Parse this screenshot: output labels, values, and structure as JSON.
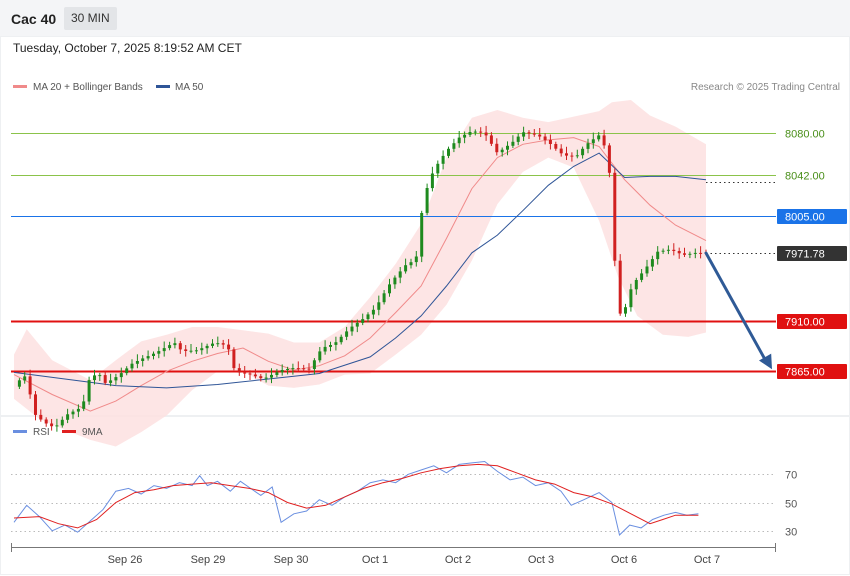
{
  "header": {
    "instrument": "Cac 40",
    "timeframe": "30 MIN",
    "datetime": "Tuesday, October 7, 2025 8:19:52 AM CET"
  },
  "legend": {
    "ma20_bb": "MA 20 + Bollinger Bands",
    "ma50": "MA 50",
    "credit": "Research © 2025 Trading Central",
    "rsi": "RSI",
    "rsi_ma": "9MA"
  },
  "colors": {
    "ma20": "#f08a8a",
    "bollinger_band": "#fde0e0",
    "ma50": "#2f5597",
    "rsi": "#6a8fe0",
    "rsi_ma": "#e02020",
    "up_candle": "#1e8a1e",
    "down_candle": "#d02020",
    "support": "#e01010",
    "level_blue": "#1a73e8",
    "level_green": "#8bc34a",
    "arrow": "#2f5a96"
  },
  "chart_data": [
    {
      "type": "candlestick",
      "title": "Cac 40",
      "x": [
        "Sep 26",
        "Sep 29",
        "Sep 30",
        "Oct 1",
        "Oct 2",
        "Oct 3",
        "Oct 6",
        "Oct 7"
      ],
      "ylim": [
        7830,
        8110
      ],
      "price_path": [
        {
          "t": 0,
          "p": 7851
        },
        {
          "t": 0.8,
          "p": 7862
        },
        {
          "t": 1.2,
          "p": 7847
        },
        {
          "t": 1.7,
          "p": 7825
        },
        {
          "t": 2.5,
          "p": 7818
        },
        {
          "t": 3.2,
          "p": 7814
        },
        {
          "t": 4.2,
          "p": 7826
        },
        {
          "t": 5.4,
          "p": 7833
        },
        {
          "t": 5.8,
          "p": 7856
        },
        {
          "t": 6.6,
          "p": 7864
        },
        {
          "t": 7.2,
          "p": 7854
        },
        {
          "t": 8.2,
          "p": 7861
        },
        {
          "t": 9.3,
          "p": 7872
        },
        {
          "t": 10.0,
          "p": 7876
        },
        {
          "t": 11.2,
          "p": 7882
        },
        {
          "t": 12.6,
          "p": 7891
        },
        {
          "t": 13.2,
          "p": 7883
        },
        {
          "t": 14.4,
          "p": 7884
        },
        {
          "t": 15.8,
          "p": 7891
        },
        {
          "t": 16.8,
          "p": 7888
        },
        {
          "t": 17.2,
          "p": 7869
        },
        {
          "t": 17.6,
          "p": 7864
        },
        {
          "t": 18.6,
          "p": 7862
        },
        {
          "t": 19.6,
          "p": 7858
        },
        {
          "t": 21.0,
          "p": 7866
        },
        {
          "t": 22.0,
          "p": 7868
        },
        {
          "t": 23.2,
          "p": 7867
        },
        {
          "t": 24.2,
          "p": 7886
        },
        {
          "t": 25.2,
          "p": 7890
        },
        {
          "t": 26.4,
          "p": 7904
        },
        {
          "t": 27.4,
          "p": 7912
        },
        {
          "t": 28.4,
          "p": 7922
        },
        {
          "t": 29.6,
          "p": 7945
        },
        {
          "t": 30.8,
          "p": 7961
        },
        {
          "t": 31.6,
          "p": 7966
        },
        {
          "t": 32.2,
          "p": 8022
        },
        {
          "t": 33.0,
          "p": 8047
        },
        {
          "t": 34.0,
          "p": 8064
        },
        {
          "t": 35.0,
          "p": 8076
        },
        {
          "t": 36.0,
          "p": 8082
        },
        {
          "t": 37.0,
          "p": 8080
        },
        {
          "t": 38.0,
          "p": 8062
        },
        {
          "t": 39.2,
          "p": 8072
        },
        {
          "t": 40.0,
          "p": 8081
        },
        {
          "t": 41.2,
          "p": 8078
        },
        {
          "t": 42.0,
          "p": 8072
        },
        {
          "t": 43.2,
          "p": 8060
        },
        {
          "t": 44.2,
          "p": 8059
        },
        {
          "t": 45.0,
          "p": 8070
        },
        {
          "t": 46.2,
          "p": 8080
        },
        {
          "t": 47.0,
          "p": 8033
        },
        {
          "t": 47.4,
          "p": 7915
        },
        {
          "t": 48.0,
          "p": 7920
        },
        {
          "t": 48.6,
          "p": 7943
        },
        {
          "t": 49.6,
          "p": 7957
        },
        {
          "t": 50.6,
          "p": 7973
        },
        {
          "t": 51.6,
          "p": 7975
        },
        {
          "t": 52.6,
          "p": 7970
        },
        {
          "t": 53.6,
          "p": 7972
        },
        {
          "t": 54.4,
          "p": 7971.78
        }
      ],
      "ma20_path": [
        {
          "t": 0,
          "p": 7862
        },
        {
          "t": 3,
          "p": 7844
        },
        {
          "t": 6,
          "p": 7829
        },
        {
          "t": 8,
          "p": 7838
        },
        {
          "t": 10,
          "p": 7852
        },
        {
          "t": 12,
          "p": 7865
        },
        {
          "t": 14,
          "p": 7874
        },
        {
          "t": 16,
          "p": 7881
        },
        {
          "t": 18,
          "p": 7886
        },
        {
          "t": 20,
          "p": 7874
        },
        {
          "t": 22,
          "p": 7866
        },
        {
          "t": 24,
          "p": 7870
        },
        {
          "t": 26,
          "p": 7879
        },
        {
          "t": 28,
          "p": 7895
        },
        {
          "t": 30,
          "p": 7918
        },
        {
          "t": 32,
          "p": 7942
        },
        {
          "t": 34,
          "p": 7985
        },
        {
          "t": 36,
          "p": 8030
        },
        {
          "t": 38,
          "p": 8058
        },
        {
          "t": 40,
          "p": 8070
        },
        {
          "t": 42,
          "p": 8074
        },
        {
          "t": 44,
          "p": 8076
        },
        {
          "t": 46,
          "p": 8068
        },
        {
          "t": 48,
          "p": 8038
        },
        {
          "t": 50,
          "p": 8015
        },
        {
          "t": 52,
          "p": 7997
        },
        {
          "t": 54.4,
          "p": 7983
        }
      ],
      "bb_upper_path": [
        {
          "t": 0,
          "p": 7880
        },
        {
          "t": 1,
          "p": 7903
        },
        {
          "t": 3,
          "p": 7875
        },
        {
          "t": 6,
          "p": 7857
        },
        {
          "t": 8,
          "p": 7875
        },
        {
          "t": 10,
          "p": 7892
        },
        {
          "t": 12,
          "p": 7898
        },
        {
          "t": 14,
          "p": 7905
        },
        {
          "t": 16,
          "p": 7905
        },
        {
          "t": 18,
          "p": 7902
        },
        {
          "t": 20,
          "p": 7899
        },
        {
          "t": 22,
          "p": 7891
        },
        {
          "t": 24,
          "p": 7891
        },
        {
          "t": 26,
          "p": 7905
        },
        {
          "t": 28,
          "p": 7932
        },
        {
          "t": 30,
          "p": 7962
        },
        {
          "t": 32,
          "p": 7998
        },
        {
          "t": 34,
          "p": 8058
        },
        {
          "t": 36,
          "p": 8094
        },
        {
          "t": 38,
          "p": 8101
        },
        {
          "t": 40,
          "p": 8094
        },
        {
          "t": 42,
          "p": 8090
        },
        {
          "t": 44,
          "p": 8095
        },
        {
          "t": 46,
          "p": 8100
        },
        {
          "t": 47,
          "p": 8108
        },
        {
          "t": 48.5,
          "p": 8110
        },
        {
          "t": 50,
          "p": 8096
        },
        {
          "t": 52,
          "p": 8086
        },
        {
          "t": 54.4,
          "p": 8070
        }
      ],
      "bb_lower_path": [
        {
          "t": 0,
          "p": 7840
        },
        {
          "t": 2,
          "p": 7822
        },
        {
          "t": 4,
          "p": 7812
        },
        {
          "t": 6,
          "p": 7803
        },
        {
          "t": 8,
          "p": 7797
        },
        {
          "t": 10,
          "p": 7810
        },
        {
          "t": 12,
          "p": 7825
        },
        {
          "t": 14,
          "p": 7848
        },
        {
          "t": 16,
          "p": 7865
        },
        {
          "t": 18,
          "p": 7865
        },
        {
          "t": 20,
          "p": 7852
        },
        {
          "t": 22,
          "p": 7850
        },
        {
          "t": 24,
          "p": 7853
        },
        {
          "t": 26,
          "p": 7862
        },
        {
          "t": 28,
          "p": 7863
        },
        {
          "t": 30,
          "p": 7880
        },
        {
          "t": 32,
          "p": 7898
        },
        {
          "t": 34,
          "p": 7925
        },
        {
          "t": 36,
          "p": 7965
        },
        {
          "t": 38,
          "p": 8016
        },
        {
          "t": 40,
          "p": 8045
        },
        {
          "t": 42,
          "p": 8058
        },
        {
          "t": 44,
          "p": 8049
        },
        {
          "t": 46,
          "p": 8001
        },
        {
          "t": 47.5,
          "p": 7950
        },
        {
          "t": 49,
          "p": 7915
        },
        {
          "t": 51,
          "p": 7898
        },
        {
          "t": 53,
          "p": 7896
        },
        {
          "t": 54.4,
          "p": 7900
        }
      ],
      "ma50_path": [
        {
          "t": 0,
          "p": 7864
        },
        {
          "t": 4,
          "p": 7858
        },
        {
          "t": 8,
          "p": 7852
        },
        {
          "t": 12,
          "p": 7850
        },
        {
          "t": 16,
          "p": 7853
        },
        {
          "t": 20,
          "p": 7858
        },
        {
          "t": 24,
          "p": 7863
        },
        {
          "t": 28,
          "p": 7878
        },
        {
          "t": 30,
          "p": 7895
        },
        {
          "t": 32,
          "p": 7915
        },
        {
          "t": 34,
          "p": 7942
        },
        {
          "t": 36,
          "p": 7972
        },
        {
          "t": 38,
          "p": 7988
        },
        {
          "t": 40,
          "p": 8010
        },
        {
          "t": 42,
          "p": 8033
        },
        {
          "t": 44,
          "p": 8050
        },
        {
          "t": 46,
          "p": 8062
        },
        {
          "t": 48,
          "p": 8040
        },
        {
          "t": 50,
          "p": 8041
        },
        {
          "t": 52,
          "p": 8041
        },
        {
          "t": 54.4,
          "p": 8038
        }
      ],
      "levels": [
        {
          "value": 8080.0,
          "label": "8080.00",
          "style": "green"
        },
        {
          "value": 8042.0,
          "label": "8042.00",
          "style": "green"
        },
        {
          "value": 8005.0,
          "label": "8005.00",
          "style": "blue"
        },
        {
          "value": 7971.78,
          "label": "7971.78",
          "style": "last"
        },
        {
          "value": 7910.0,
          "label": "7910.00",
          "style": "red"
        },
        {
          "value": 7865.0,
          "label": "7865.00",
          "style": "red"
        }
      ],
      "projection": {
        "from": {
          "t": 54.4,
          "p": 7971.78
        },
        "to": {
          "t": 59.5,
          "p": 7865
        }
      },
      "legend": [
        "MA 20 + Bollinger Bands",
        "MA 50"
      ]
    },
    {
      "type": "line",
      "x": [
        "Sep 26",
        "Sep 29",
        "Sep 30",
        "Oct 1",
        "Oct 2",
        "Oct 3",
        "Oct 6",
        "Oct 7"
      ],
      "ylim": [
        10,
        90
      ],
      "yticks": [
        70,
        50,
        30
      ],
      "series": [
        {
          "name": "RSI",
          "points": [
            {
              "t": 0,
              "v": 36
            },
            {
              "t": 1,
              "v": 48
            },
            {
              "t": 2,
              "v": 40
            },
            {
              "t": 3,
              "v": 30
            },
            {
              "t": 4,
              "v": 34
            },
            {
              "t": 5,
              "v": 29
            },
            {
              "t": 6,
              "v": 37
            },
            {
              "t": 7,
              "v": 45
            },
            {
              "t": 8,
              "v": 58
            },
            {
              "t": 9,
              "v": 60
            },
            {
              "t": 10,
              "v": 56
            },
            {
              "t": 11,
              "v": 62
            },
            {
              "t": 12,
              "v": 60
            },
            {
              "t": 13,
              "v": 64
            },
            {
              "t": 14,
              "v": 62
            },
            {
              "t": 14.6,
              "v": 69
            },
            {
              "t": 15.2,
              "v": 62
            },
            {
              "t": 16,
              "v": 65
            },
            {
              "t": 17,
              "v": 58
            },
            {
              "t": 17.8,
              "v": 65
            },
            {
              "t": 18.6,
              "v": 60
            },
            {
              "t": 19.4,
              "v": 55
            },
            {
              "t": 20.3,
              "v": 61
            },
            {
              "t": 21,
              "v": 36
            },
            {
              "t": 22,
              "v": 42
            },
            {
              "t": 23,
              "v": 44
            },
            {
              "t": 24,
              "v": 52
            },
            {
              "t": 25,
              "v": 48
            },
            {
              "t": 26,
              "v": 54
            },
            {
              "t": 27,
              "v": 58
            },
            {
              "t": 28,
              "v": 64
            },
            {
              "t": 29,
              "v": 66
            },
            {
              "t": 30,
              "v": 64
            },
            {
              "t": 31,
              "v": 70
            },
            {
              "t": 32,
              "v": 73
            },
            {
              "t": 33,
              "v": 76
            },
            {
              "t": 34,
              "v": 71
            },
            {
              "t": 35,
              "v": 77
            },
            {
              "t": 36,
              "v": 78
            },
            {
              "t": 37,
              "v": 79
            },
            {
              "t": 38,
              "v": 72
            },
            {
              "t": 39,
              "v": 66
            },
            {
              "t": 40,
              "v": 68
            },
            {
              "t": 41,
              "v": 62
            },
            {
              "t": 42,
              "v": 64
            },
            {
              "t": 43,
              "v": 58
            },
            {
              "t": 43.8,
              "v": 48
            },
            {
              "t": 44.8,
              "v": 52
            },
            {
              "t": 46,
              "v": 57
            },
            {
              "t": 47,
              "v": 50
            },
            {
              "t": 47.6,
              "v": 27
            },
            {
              "t": 48.4,
              "v": 34
            },
            {
              "t": 49.3,
              "v": 32
            },
            {
              "t": 50.2,
              "v": 38
            },
            {
              "t": 51.1,
              "v": 41
            },
            {
              "t": 52,
              "v": 43
            },
            {
              "t": 52.9,
              "v": 41
            },
            {
              "t": 53.8,
              "v": 42
            }
          ]
        },
        {
          "name": "9MA",
          "points": [
            {
              "t": 0,
              "v": 39
            },
            {
              "t": 2,
              "v": 40
            },
            {
              "t": 3.5,
              "v": 35
            },
            {
              "t": 5,
              "v": 32
            },
            {
              "t": 6.5,
              "v": 38
            },
            {
              "t": 8,
              "v": 50
            },
            {
              "t": 9.5,
              "v": 57
            },
            {
              "t": 11,
              "v": 59
            },
            {
              "t": 12.5,
              "v": 62
            },
            {
              "t": 14,
              "v": 63
            },
            {
              "t": 15.5,
              "v": 64
            },
            {
              "t": 17,
              "v": 62
            },
            {
              "t": 18.5,
              "v": 60
            },
            {
              "t": 20,
              "v": 57
            },
            {
              "t": 21.5,
              "v": 50
            },
            {
              "t": 23,
              "v": 46
            },
            {
              "t": 24.5,
              "v": 48
            },
            {
              "t": 26,
              "v": 54
            },
            {
              "t": 27.5,
              "v": 60
            },
            {
              "t": 29,
              "v": 64
            },
            {
              "t": 30.5,
              "v": 67
            },
            {
              "t": 32,
              "v": 71
            },
            {
              "t": 33.5,
              "v": 74
            },
            {
              "t": 35,
              "v": 76
            },
            {
              "t": 36.5,
              "v": 77
            },
            {
              "t": 38,
              "v": 76
            },
            {
              "t": 39.5,
              "v": 71
            },
            {
              "t": 41,
              "v": 66
            },
            {
              "t": 42.5,
              "v": 63
            },
            {
              "t": 44,
              "v": 57
            },
            {
              "t": 45.5,
              "v": 54
            },
            {
              "t": 47,
              "v": 49
            },
            {
              "t": 48.5,
              "v": 42
            },
            {
              "t": 50,
              "v": 35
            },
            {
              "t": 51,
              "v": 38
            },
            {
              "t": 52,
              "v": 41
            },
            {
              "t": 53.8,
              "v": 41
            }
          ]
        }
      ],
      "legend": [
        "RSI",
        "9MA"
      ]
    }
  ]
}
